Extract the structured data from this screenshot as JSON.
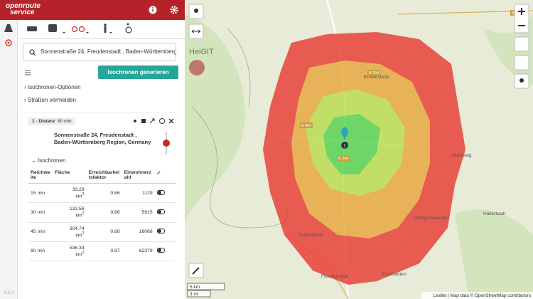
{
  "header": {
    "brand_line1": "openroute",
    "brand_line2": "service"
  },
  "search": {
    "value": "Sonnenstraße 24, Freudenstadt , Baden-Württemberg"
  },
  "button": "Isochronen generieren",
  "options": [
    "Isochronen-Optionen",
    "Straßen vermeiden"
  ],
  "result": {
    "badge": "1 - Distanz",
    "badge_time": "60 min",
    "address": "Sonnenstraße 24, Freudenstadt , Baden-Württemberg Region, Germany",
    "section": "Isochronen",
    "table": {
      "headers": [
        "Reichweite",
        "Fläche",
        "Erreichbarkeitsfaktor",
        "Einwohnerzahl"
      ],
      "area_unit": "km",
      "area_unit_exp": "2",
      "rows": [
        [
          "15 min",
          "33.28",
          "0.86",
          "1129"
        ],
        [
          "30 min",
          "132.56",
          "0.86",
          "5915"
        ],
        [
          "45 min",
          "304.74",
          "0.88",
          "16068"
        ],
        [
          "60 min",
          "536.34",
          "0.87",
          "62379"
        ]
      ]
    }
  },
  "map": {
    "logo": "HeiGIT",
    "places": [
      "Enzklösterle",
      "Altensteig",
      "Haiterbach",
      "Pfalzgrafenweiler",
      "Baiersbronn",
      "Freudenstadt",
      "Dornstetten"
    ],
    "roads": [
      "B 294",
      "B 296",
      "B 462",
      "B 294"
    ],
    "marker": "1",
    "scale": [
      "5 km",
      "3 mi"
    ],
    "attribution": "Leaflet | Map data © OpenStreetMap contributors"
  },
  "version": "0.5.3"
}
